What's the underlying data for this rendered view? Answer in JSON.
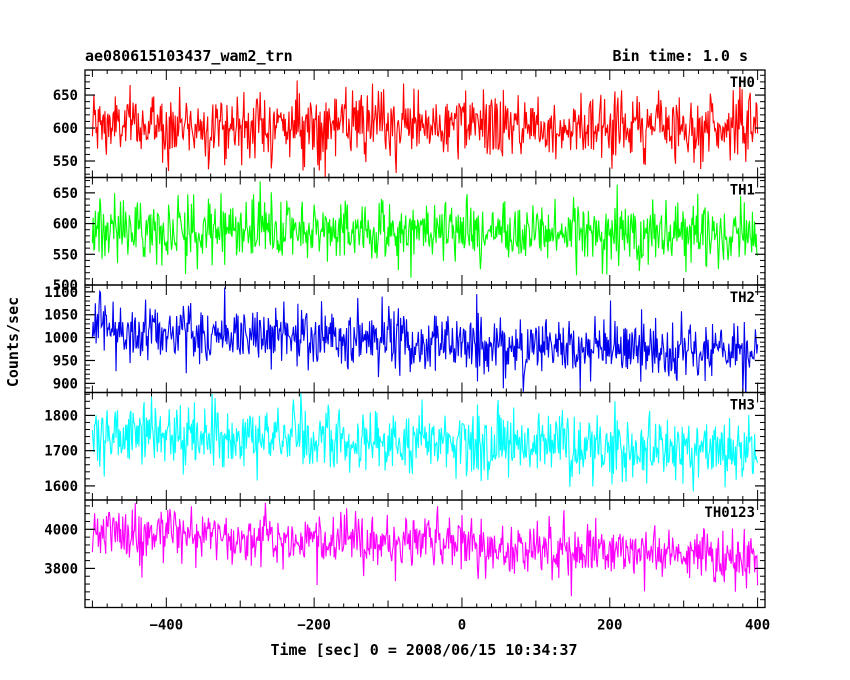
{
  "chart_data": {
    "type": "line",
    "title": "ae080615103437_wam2_trn",
    "subtitle": "Bin time: 1.0 s",
    "xlabel": "Time [sec] 0 = 2008/06/15 10:34:37",
    "ylabel": "Counts/sec",
    "xlim": [
      -510,
      410
    ],
    "x_range": [
      -500,
      400
    ],
    "bin_time": 1.0,
    "xticks": [
      -400,
      -200,
      0,
      200,
      400
    ],
    "xtick_labels": [
      "−400",
      "−200",
      "0",
      "200",
      "400"
    ],
    "grid": false,
    "panels": [
      {
        "name": "TH0",
        "color": "#ff0000",
        "ylim": [
          525,
          688
        ],
        "yticks": [
          550,
          600,
          650
        ],
        "ytick_labels": [
          "550",
          "600",
          "650"
        ],
        "mean_start": 604,
        "mean_end": 603,
        "noise": 25
      },
      {
        "name": "TH1",
        "color": "#00ff00",
        "ylim": [
          500,
          675
        ],
        "yticks": [
          500,
          550,
          600,
          650
        ],
        "ytick_labels": [
          "500",
          "550",
          "600",
          "650"
        ],
        "mean_start": 592,
        "mean_end": 583,
        "noise": 25
      },
      {
        "name": "TH2",
        "color": "#0000ee",
        "ylim": [
          880,
          1115
        ],
        "yticks": [
          900,
          950,
          1000,
          1050,
          1100
        ],
        "ytick_labels": [
          "900",
          "950",
          "1000",
          "1050",
          "1100"
        ],
        "mean_start": 1020,
        "mean_end": 960,
        "noise": 34
      },
      {
        "name": "TH3",
        "color": "#00ffff",
        "ylim": [
          1560,
          1865
        ],
        "yticks": [
          1600,
          1700,
          1800
        ],
        "ytick_labels": [
          "1600",
          "1700",
          "1800"
        ],
        "mean_start": 1748,
        "mean_end": 1700,
        "noise": 45
      },
      {
        "name": "TH0123",
        "color": "#ff00ff",
        "ylim": [
          3600,
          4150
        ],
        "yticks": [
          3800,
          4000
        ],
        "ytick_labels": [
          "3800",
          "4000"
        ],
        "mean_start": 3990,
        "mean_end": 3860,
        "noise": 68
      }
    ]
  }
}
